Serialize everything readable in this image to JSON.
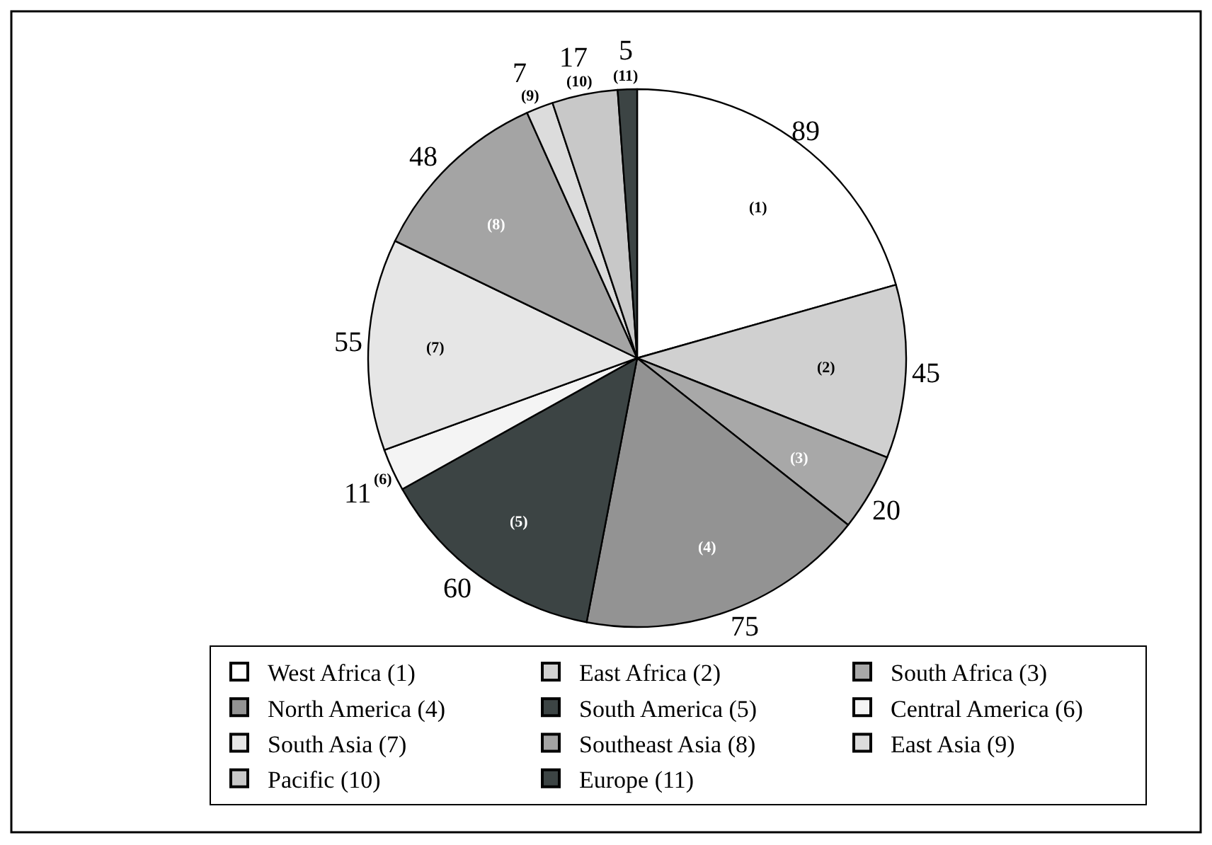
{
  "chart_data": {
    "type": "pie",
    "categories": [
      "West Africa (1)",
      "East Africa (2)",
      "South Africa (3)",
      "North America (4)",
      "South America (5)",
      "Central America (6)",
      "South Asia (7)",
      "Southeast Asia (8)",
      "East Asia (9)",
      "Pacific (10)",
      "Europe (11)"
    ],
    "values": [
      89,
      45,
      20,
      75,
      60,
      11,
      55,
      48,
      7,
      17,
      5
    ],
    "colors": [
      "#ffffff",
      "#d0d0d0",
      "#a8a8a8",
      "#939393",
      "#3c4444",
      "#f4f4f4",
      "#e6e6e6",
      "#a4a4a4",
      "#dcdcdc",
      "#c8c8c8",
      "#3c4444"
    ],
    "data_labels": true,
    "legend": "bottom",
    "annotations": [
      "(1)",
      "(2)",
      "(3)",
      "(4)",
      "(5)",
      "(6)",
      "(7)",
      "(8)",
      "(9)",
      "(10)",
      "(11)"
    ]
  }
}
